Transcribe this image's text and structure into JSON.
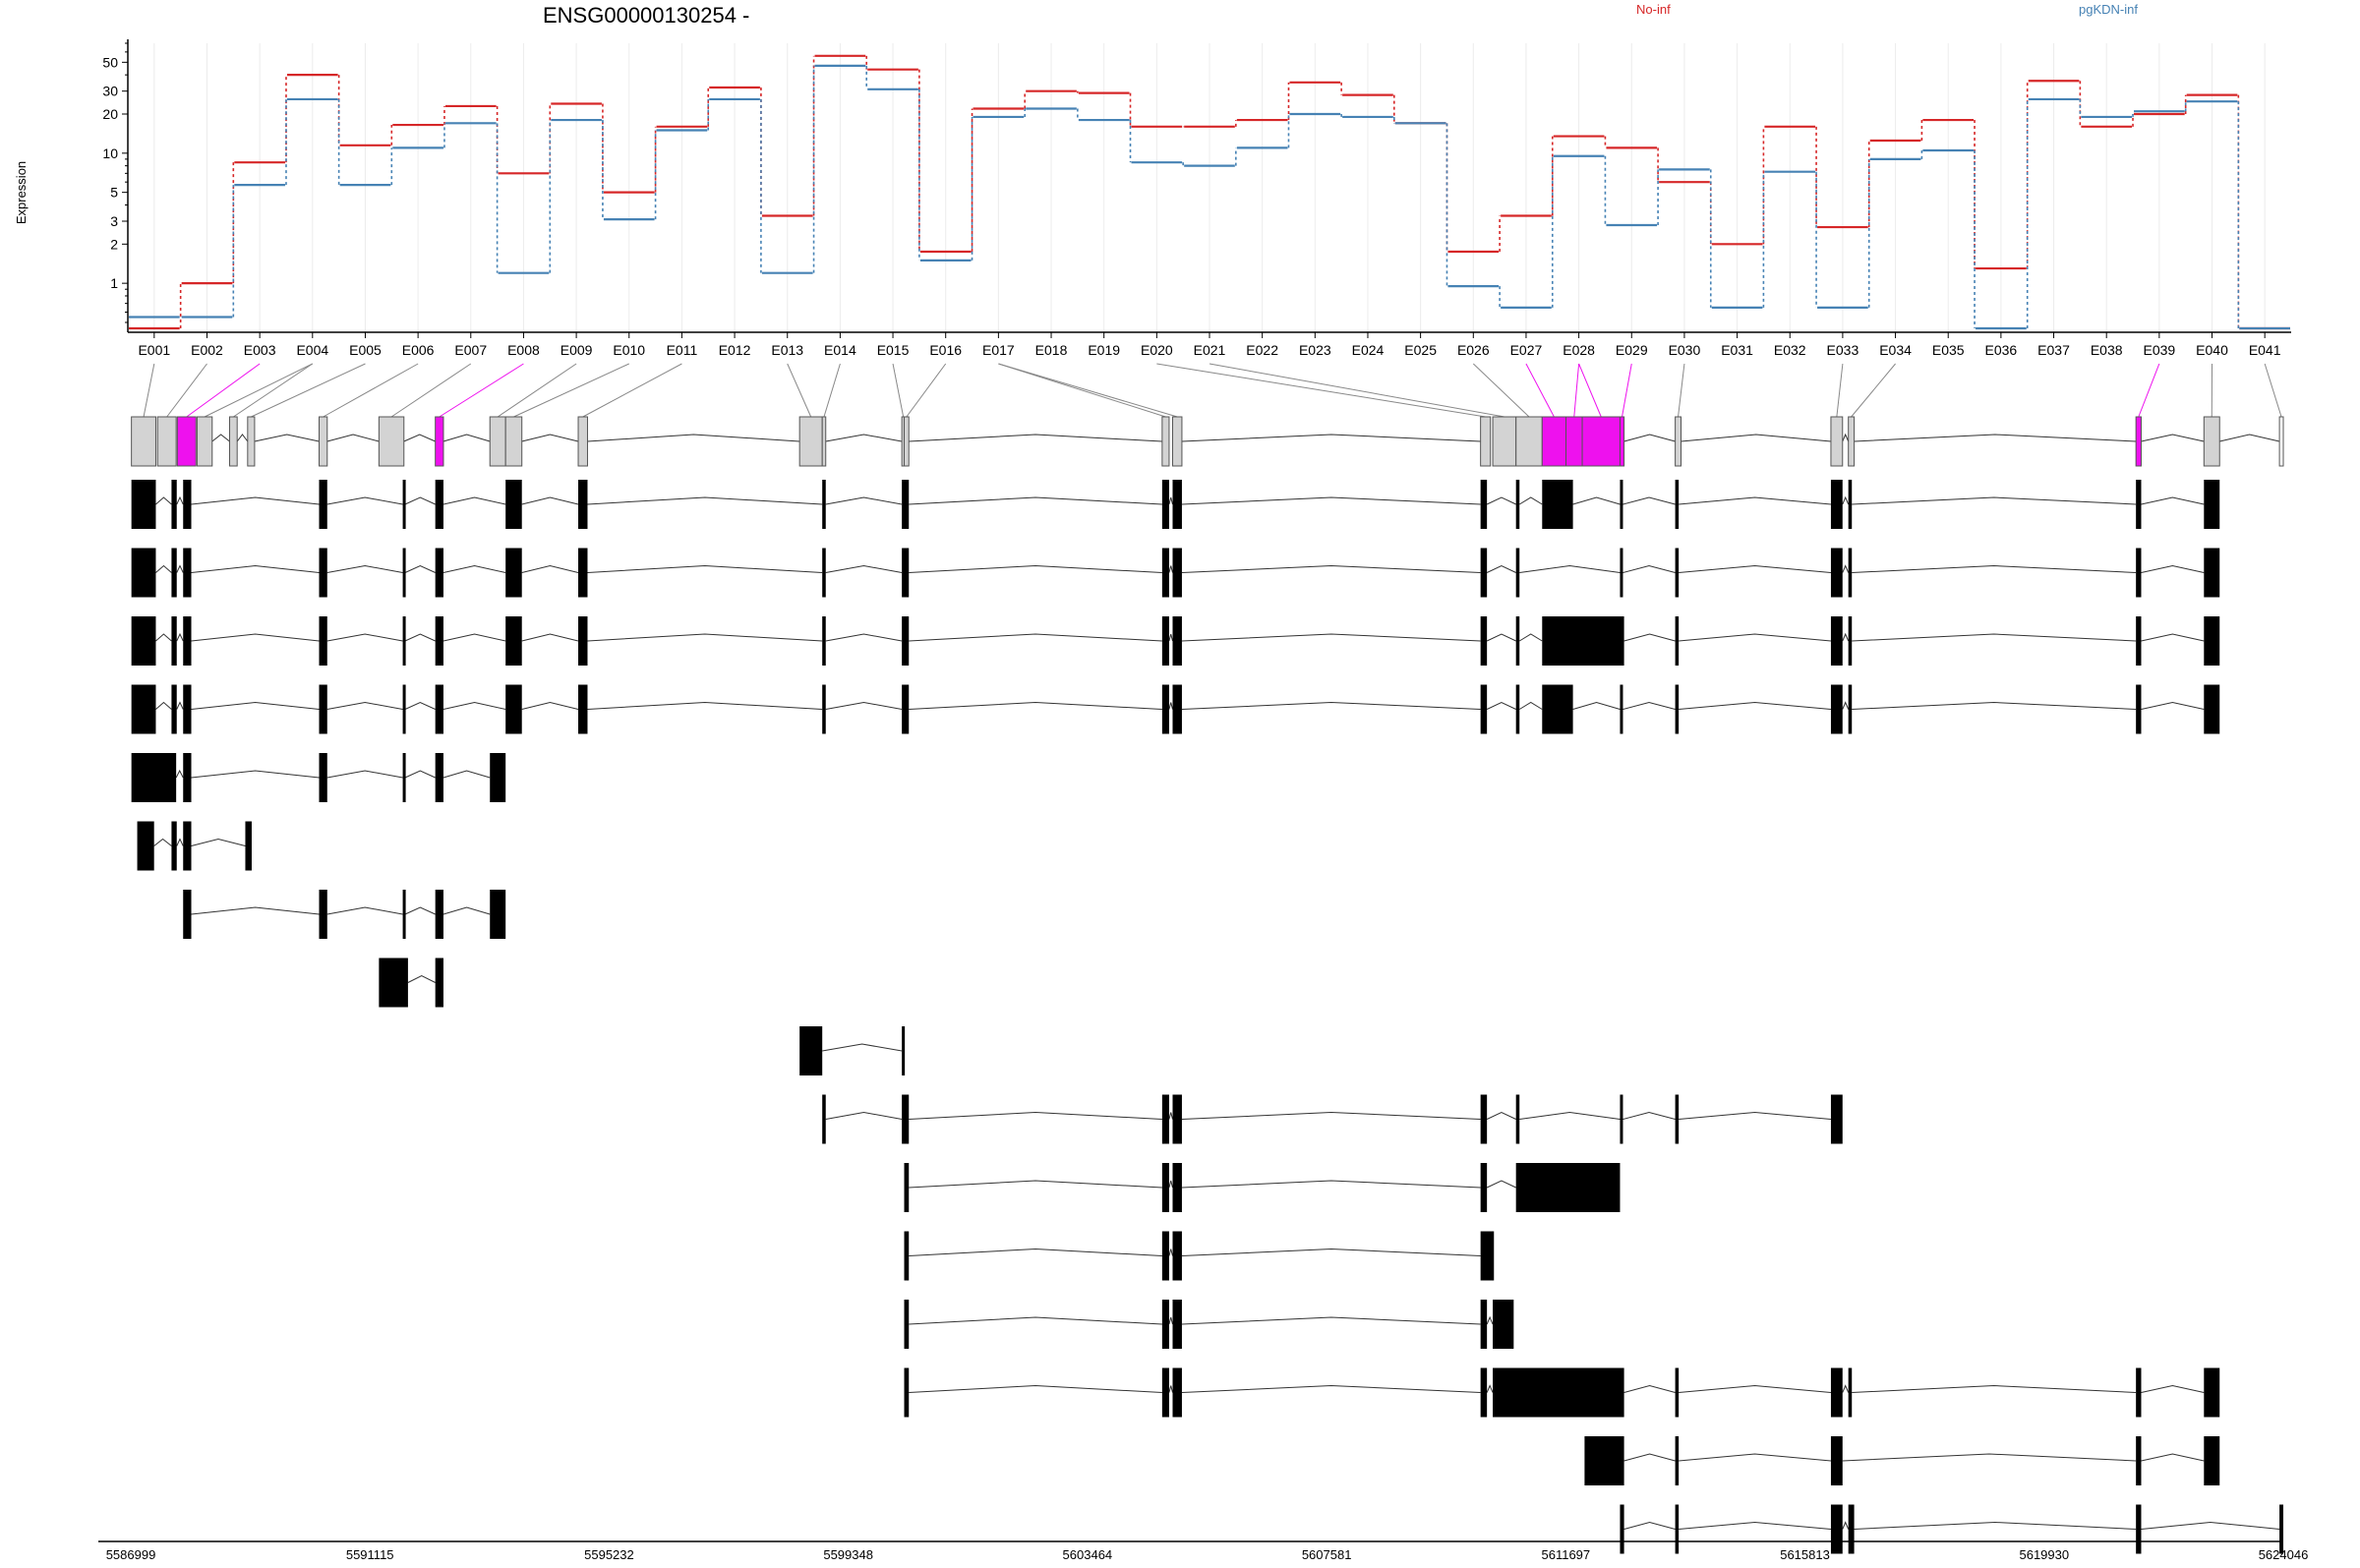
{
  "chart_data": {
    "type": "line",
    "title": "ENSG00000130254 -",
    "ylabel": "Expression",
    "yscale": "log",
    "ylim": [
      0.42,
      70
    ],
    "yticks": [
      1,
      2,
      3,
      5,
      10,
      20,
      30,
      50
    ],
    "grid": true,
    "legend_position": "top-right",
    "categories": [
      "E001",
      "E002",
      "E003",
      "E004",
      "E005",
      "E006",
      "E007",
      "E008",
      "E009",
      "E010",
      "E011",
      "E012",
      "E013",
      "E014",
      "E015",
      "E016",
      "E017",
      "E018",
      "E019",
      "E020",
      "E021",
      "E022",
      "E023",
      "E024",
      "E025",
      "E026",
      "E027",
      "E028",
      "E029",
      "E030",
      "E031",
      "E032",
      "E033",
      "E034",
      "E035",
      "E036",
      "E037",
      "E038",
      "E039",
      "E040",
      "E041"
    ],
    "series": [
      {
        "name": "No-inf",
        "color": "#d62728",
        "values": [
          0.45,
          1.0,
          8.5,
          40,
          11.5,
          16.5,
          23,
          7.0,
          24,
          5.0,
          16,
          32,
          3.3,
          56,
          44,
          1.75,
          22,
          30,
          29,
          16,
          16,
          18,
          35,
          28,
          17,
          1.75,
          3.3,
          13.5,
          11,
          6.0,
          2.0,
          16,
          2.7,
          12.5,
          18,
          1.3,
          36,
          16,
          20,
          28,
          0.45
        ]
      },
      {
        "name": "pgKDN-inf",
        "color": "#4682b4",
        "values": [
          0.55,
          0.55,
          5.7,
          26,
          5.7,
          11,
          17,
          1.2,
          18,
          3.1,
          15,
          26,
          1.2,
          47,
          31,
          1.5,
          19,
          22,
          18,
          8.5,
          8.0,
          11,
          20,
          19,
          17,
          0.95,
          0.65,
          9.5,
          2.8,
          7.5,
          0.65,
          7.2,
          0.65,
          9.0,
          10.5,
          0.45,
          26,
          19,
          21,
          25,
          0.45
        ]
      }
    ],
    "significant_exons": [
      "E003",
      "E008",
      "E027",
      "E028",
      "E029",
      "E039"
    ],
    "highlight_color": "#ee11ee",
    "genomic_axis": {
      "range": [
        5586999,
        5624046
      ],
      "ticks": [
        5586999,
        5591115,
        5595232,
        5599348,
        5603464,
        5607581,
        5611697,
        5615813,
        5619930,
        5624046
      ]
    },
    "exon_bins": [
      [
        5587010,
        5587430
      ],
      [
        5587460,
        5587780
      ],
      [
        5587800,
        5588120
      ],
      [
        5588140,
        5588400
      ],
      [
        5588700,
        5588830
      ],
      [
        5589010,
        5589130
      ],
      [
        5590240,
        5590380
      ],
      [
        5591270,
        5591700
      ],
      [
        5592240,
        5592380
      ],
      [
        5593180,
        5593450
      ],
      [
        5593450,
        5593730
      ],
      [
        5594700,
        5594860
      ],
      [
        5598510,
        5598900
      ],
      [
        5598900,
        5598960
      ],
      [
        5600270,
        5600310
      ],
      [
        5600310,
        5600390
      ],
      [
        5604750,
        5604870
      ],
      [
        5604930,
        5605090
      ],
      [
        5610230,
        5610400
      ],
      [
        5610440,
        5610840
      ],
      [
        5610840,
        5611290
      ],
      [
        5611290,
        5611700
      ],
      [
        5611700,
        5611980
      ],
      [
        5611980,
        5612630
      ],
      [
        5612630,
        5612700
      ],
      [
        5613580,
        5613680
      ],
      [
        5616260,
        5616460
      ],
      [
        5616560,
        5616660
      ],
      [
        5621510,
        5621600
      ],
      [
        5622680,
        5622950
      ],
      [
        5623980,
        5624046
      ]
    ],
    "bin_exon_links": [
      1,
      2,
      3,
      4,
      4,
      5,
      6,
      7,
      8,
      9,
      10,
      11,
      13,
      14,
      15,
      16,
      17,
      17,
      20,
      21,
      26,
      27,
      28,
      28,
      29,
      30,
      33,
      34,
      39,
      40,
      41
    ],
    "transcripts": [
      [
        [
          5587010,
          5587430
        ],
        [
          5587700,
          5587790
        ],
        [
          5587900,
          5588040
        ],
        [
          5590240,
          5590380
        ],
        [
          5591680,
          5591720
        ],
        [
          5592240,
          5592380
        ],
        [
          5593450,
          5593730
        ],
        [
          5594700,
          5594860
        ],
        [
          5598900,
          5598960
        ],
        [
          5600270,
          5600390
        ],
        [
          5604750,
          5604870
        ],
        [
          5604930,
          5605090
        ],
        [
          5610230,
          5610340
        ],
        [
          5610840,
          5610900
        ],
        [
          5611290,
          5611820
        ],
        [
          5612630,
          5612680
        ],
        [
          5613580,
          5613640
        ],
        [
          5616260,
          5616460
        ],
        [
          5616560,
          5616620
        ],
        [
          5621510,
          5621600
        ],
        [
          5622680,
          5622950
        ]
      ],
      [
        [
          5587010,
          5587430
        ],
        [
          5587700,
          5587790
        ],
        [
          5587900,
          5588040
        ],
        [
          5590240,
          5590380
        ],
        [
          5591680,
          5591720
        ],
        [
          5592240,
          5592380
        ],
        [
          5593450,
          5593730
        ],
        [
          5594700,
          5594860
        ],
        [
          5598900,
          5598960
        ],
        [
          5600270,
          5600390
        ],
        [
          5604750,
          5604870
        ],
        [
          5604930,
          5605090
        ],
        [
          5610230,
          5610340
        ],
        [
          5610840,
          5610900
        ],
        [
          5612630,
          5612680
        ],
        [
          5613580,
          5613640
        ],
        [
          5616260,
          5616460
        ],
        [
          5616560,
          5616620
        ],
        [
          5621510,
          5621600
        ],
        [
          5622680,
          5622950
        ]
      ],
      [
        [
          5587010,
          5587430
        ],
        [
          5587700,
          5587790
        ],
        [
          5587900,
          5588040
        ],
        [
          5590240,
          5590380
        ],
        [
          5591680,
          5591720
        ],
        [
          5592240,
          5592380
        ],
        [
          5593450,
          5593730
        ],
        [
          5594700,
          5594860
        ],
        [
          5598900,
          5598960
        ],
        [
          5600270,
          5600390
        ],
        [
          5604750,
          5604870
        ],
        [
          5604930,
          5605090
        ],
        [
          5610230,
          5610340
        ],
        [
          5610840,
          5610900
        ],
        [
          5611290,
          5612700
        ],
        [
          5613580,
          5613640
        ],
        [
          5616260,
          5616460
        ],
        [
          5616560,
          5616620
        ],
        [
          5621510,
          5621600
        ],
        [
          5622680,
          5622950
        ]
      ],
      [
        [
          5587010,
          5587430
        ],
        [
          5587700,
          5587790
        ],
        [
          5587900,
          5588040
        ],
        [
          5590240,
          5590380
        ],
        [
          5591680,
          5591720
        ],
        [
          5592240,
          5592380
        ],
        [
          5593450,
          5593730
        ],
        [
          5594700,
          5594860
        ],
        [
          5598900,
          5598960
        ],
        [
          5600270,
          5600390
        ],
        [
          5604750,
          5604870
        ],
        [
          5604930,
          5605090
        ],
        [
          5610230,
          5610340
        ],
        [
          5610840,
          5610900
        ],
        [
          5611290,
          5611820
        ],
        [
          5612630,
          5612680
        ],
        [
          5613580,
          5613640
        ],
        [
          5616260,
          5616460
        ],
        [
          5616560,
          5616620
        ],
        [
          5621510,
          5621600
        ],
        [
          5622680,
          5622950
        ]
      ],
      [
        [
          5587010,
          5587780
        ],
        [
          5587900,
          5588040
        ],
        [
          5590240,
          5590380
        ],
        [
          5591680,
          5591720
        ],
        [
          5592240,
          5592380
        ],
        [
          5593180,
          5593450
        ]
      ],
      [
        [
          5587110,
          5587400
        ],
        [
          5587700,
          5587790
        ],
        [
          5587900,
          5588040
        ],
        [
          5588970,
          5589080
        ]
      ],
      [
        [
          5587900,
          5588040
        ],
        [
          5590240,
          5590380
        ],
        [
          5591680,
          5591720
        ],
        [
          5592240,
          5592380
        ],
        [
          5593180,
          5593450
        ]
      ],
      [
        [
          5591270,
          5591770
        ],
        [
          5592240,
          5592380
        ]
      ],
      [
        [
          5598510,
          5598900
        ],
        [
          5600270,
          5600310
        ]
      ],
      [
        [
          5598900,
          5598960
        ],
        [
          5600270,
          5600390
        ],
        [
          5604750,
          5604870
        ],
        [
          5604930,
          5605090
        ],
        [
          5610230,
          5610340
        ],
        [
          5610840,
          5610900
        ],
        [
          5612630,
          5612680
        ],
        [
          5613580,
          5613640
        ],
        [
          5616260,
          5616460
        ]
      ],
      [
        [
          5600310,
          5600390
        ],
        [
          5604750,
          5604870
        ],
        [
          5604930,
          5605090
        ],
        [
          5610230,
          5610340
        ],
        [
          5610840,
          5612630
        ]
      ],
      [
        [
          5600310,
          5600390
        ],
        [
          5604750,
          5604870
        ],
        [
          5604930,
          5605090
        ],
        [
          5610230,
          5610460
        ]
      ],
      [
        [
          5600310,
          5600390
        ],
        [
          5604750,
          5604870
        ],
        [
          5604930,
          5605090
        ],
        [
          5610230,
          5610340
        ],
        [
          5610440,
          5610800
        ]
      ],
      [
        [
          5600310,
          5600390
        ],
        [
          5604750,
          5604870
        ],
        [
          5604930,
          5605090
        ],
        [
          5610230,
          5610340
        ],
        [
          5610440,
          5612700
        ],
        [
          5613580,
          5613640
        ],
        [
          5616260,
          5616460
        ],
        [
          5616560,
          5616620
        ],
        [
          5621510,
          5621600
        ],
        [
          5622680,
          5622950
        ]
      ],
      [
        [
          5612020,
          5612700
        ],
        [
          5613580,
          5613640
        ],
        [
          5616260,
          5616460
        ],
        [
          5621510,
          5621600
        ],
        [
          5622680,
          5622950
        ]
      ],
      [
        [
          5612630,
          5612700
        ],
        [
          5613580,
          5613640
        ],
        [
          5616260,
          5616460
        ],
        [
          5616560,
          5616660
        ],
        [
          5621510,
          5621600
        ],
        [
          5623980,
          5624046
        ]
      ]
    ]
  }
}
